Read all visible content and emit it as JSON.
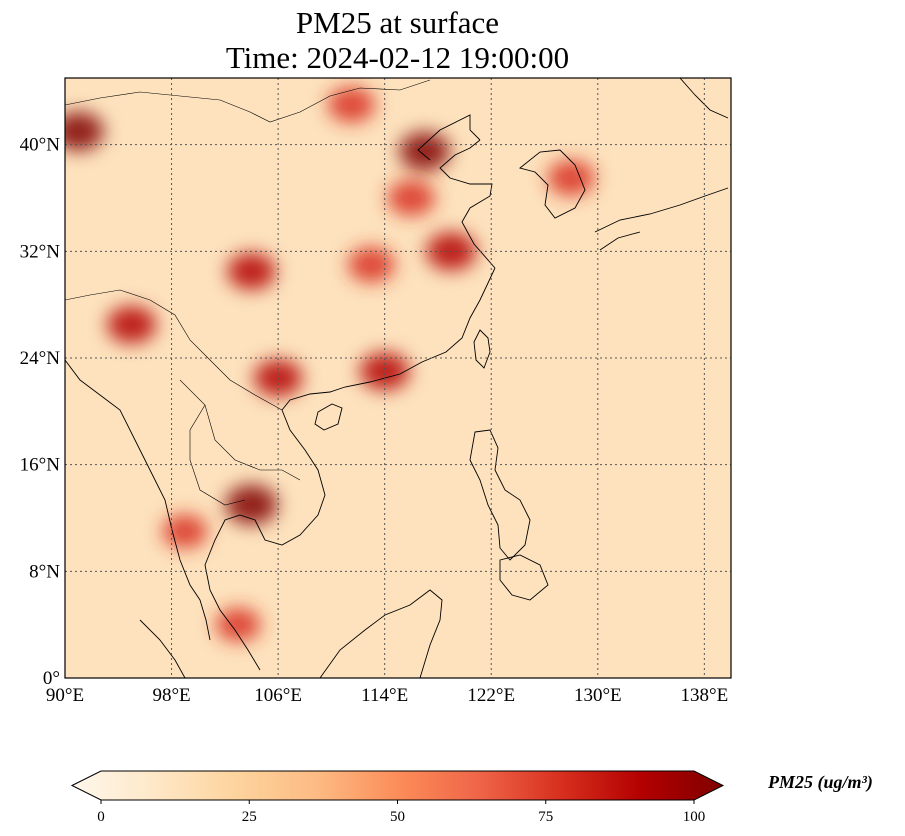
{
  "title": {
    "line1": "PM25 at surface",
    "line2": "Time: 2024-02-12 19:00:00"
  },
  "map": {
    "lon_range": [
      90,
      140
    ],
    "lat_range": [
      0,
      45
    ],
    "gridlines": true,
    "x_ticks": [
      90,
      98,
      106,
      114,
      122,
      130,
      138
    ],
    "x_tick_labels": [
      "90°E",
      "98°E",
      "106°E",
      "114°E",
      "122°E",
      "130°E",
      "138°E"
    ],
    "y_ticks": [
      0,
      8,
      16,
      24,
      32,
      40
    ],
    "y_tick_labels": [
      "0°",
      "8°N",
      "16°N",
      "24°N",
      "32°N",
      "40°N"
    ],
    "colormap": "OrRd",
    "field_hotspots": [
      {
        "lon": 117,
        "lat": 39.5,
        "value": 95
      },
      {
        "lon": 119,
        "lat": 32,
        "value": 92
      },
      {
        "lon": 104,
        "lat": 13,
        "value": 100
      },
      {
        "lon": 106,
        "lat": 22.5,
        "value": 85
      },
      {
        "lon": 114,
        "lat": 23,
        "value": 90
      },
      {
        "lon": 91,
        "lat": 41,
        "value": 95
      },
      {
        "lon": 95,
        "lat": 26.5,
        "value": 88
      },
      {
        "lon": 104,
        "lat": 30.5,
        "value": 85
      },
      {
        "lon": 113,
        "lat": 31,
        "value": 78
      },
      {
        "lon": 116,
        "lat": 36,
        "value": 80
      },
      {
        "lon": 111.5,
        "lat": 43,
        "value": 80
      },
      {
        "lon": 128,
        "lat": 37.5,
        "value": 80
      },
      {
        "lon": 99,
        "lat": 11,
        "value": 70
      },
      {
        "lon": 103,
        "lat": 4,
        "value": 70
      }
    ]
  },
  "colorbar": {
    "min": 0,
    "max": 100,
    "ticks": [
      0,
      25,
      50,
      75,
      100
    ],
    "tick_labels": [
      "0",
      "25",
      "50",
      "75",
      "100"
    ],
    "label": "PM25 (ug/m³)",
    "colors": [
      "#fff7ec",
      "#fee8c8",
      "#fdd49e",
      "#fdbb84",
      "#fc8d59",
      "#ef6548",
      "#d7301f",
      "#b30000",
      "#7f0000"
    ]
  }
}
